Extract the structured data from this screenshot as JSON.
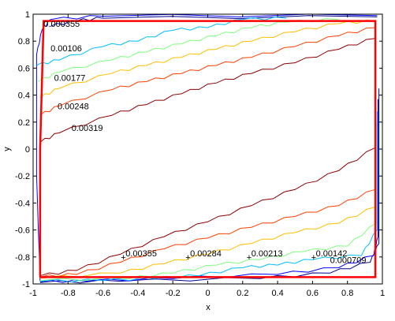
{
  "chart_data": {
    "type": "line",
    "title": "",
    "xlabel": "x",
    "ylabel": "y",
    "xlim": [
      -1,
      1
    ],
    "ylim": [
      -1,
      1
    ],
    "xticks": [
      "-1",
      "-0.8",
      "-0.6",
      "-0.4",
      "-0.2",
      "0",
      "0.2",
      "0.4",
      "0.6",
      "0.8",
      "1"
    ],
    "yticks": [
      "-1",
      "-0.8",
      "-0.6",
      "-0.4",
      "-0.2",
      "0",
      "0.2",
      "0.4",
      "0.6",
      "0.8",
      "1"
    ],
    "grid": false,
    "upper_labels": [
      {
        "text": "0.000355",
        "x": -0.94,
        "y": 0.9
      },
      {
        "text": "0.00106",
        "x": -0.9,
        "y": 0.72
      },
      {
        "text": "0.00177",
        "x": -0.88,
        "y": 0.5
      },
      {
        "text": "0.00248",
        "x": -0.86,
        "y": 0.29
      },
      {
        "text": "0.00319",
        "x": -0.78,
        "y": 0.13
      }
    ],
    "lower_labels": [
      {
        "text": "0.00355",
        "x": -0.48,
        "y": -0.8
      },
      {
        "text": "0.00284",
        "x": -0.11,
        "y": -0.8
      },
      {
        "text": "0.00213",
        "x": 0.24,
        "y": -0.8
      },
      {
        "text": "0.00142",
        "x": 0.61,
        "y": -0.8
      },
      {
        "text": "0.000709",
        "x": 0.7,
        "y": -0.85
      }
    ],
    "series": [
      {
        "color": "#00008f",
        "upper": [
          [
            -0.9,
            0.91
          ],
          [
            -0.75,
            0.95
          ],
          [
            -0.6,
            0.97
          ],
          [
            0.97,
            0.98
          ]
        ],
        "lower": [
          [
            0.98,
            0.45
          ],
          [
            0.98,
            -0.7
          ],
          [
            0.93,
            -0.84
          ],
          [
            0.7,
            -0.92
          ],
          [
            0.3,
            -0.96
          ],
          [
            -0.5,
            -0.98
          ],
          [
            -0.96,
            -0.99
          ]
        ]
      },
      {
        "color": "#0000ff",
        "upper": [
          [
            -0.96,
            -0.98
          ],
          [
            -0.98,
            -0.2
          ],
          [
            -0.98,
            0.7
          ],
          [
            -0.95,
            0.88
          ],
          [
            -0.9,
            0.96
          ],
          [
            -0.6,
            0.985
          ],
          [
            0.97,
            0.99
          ]
        ],
        "lower": [
          [
            0.975,
            0.37
          ],
          [
            0.975,
            -0.65
          ],
          [
            0.95,
            -0.79
          ],
          [
            0.75,
            -0.88
          ],
          [
            0.4,
            -0.93
          ],
          [
            -0.2,
            -0.96
          ],
          [
            -0.7,
            -0.98
          ],
          [
            -0.96,
            -0.985
          ]
        ]
      },
      {
        "color": "#00bfff",
        "upper": [
          [
            -0.98,
            0.62
          ],
          [
            -0.85,
            0.66
          ],
          [
            -0.6,
            0.76
          ],
          [
            -0.4,
            0.8
          ],
          [
            -0.2,
            0.88
          ],
          [
            0.0,
            0.9
          ],
          [
            0.2,
            0.96
          ],
          [
            0.45,
            0.97
          ]
        ],
        "lower": [
          [
            0.97,
            0.28
          ],
          [
            0.97,
            -0.6
          ],
          [
            0.88,
            -0.79
          ],
          [
            0.6,
            -0.82
          ],
          [
            0.4,
            -0.86
          ],
          [
            0.2,
            -0.88
          ],
          [
            -0.05,
            -0.94
          ],
          [
            -0.3,
            -0.96
          ],
          [
            -0.6,
            -0.975
          ],
          [
            -0.96,
            -0.98
          ]
        ]
      },
      {
        "color": "#7fff7f",
        "upper": [
          [
            -0.97,
            0.5
          ],
          [
            -0.85,
            0.57
          ],
          [
            -0.55,
            0.66
          ],
          [
            -0.35,
            0.72
          ],
          [
            -0.15,
            0.78
          ],
          [
            0.05,
            0.84
          ],
          [
            0.25,
            0.9
          ],
          [
            0.45,
            0.94
          ],
          [
            0.75,
            0.96
          ]
        ],
        "lower": [
          [
            0.965,
            0.2
          ],
          [
            0.965,
            -0.55
          ],
          [
            0.8,
            -0.72
          ],
          [
            0.55,
            -0.76
          ],
          [
            0.3,
            -0.82
          ],
          [
            0.05,
            -0.86
          ],
          [
            -0.2,
            -0.92
          ],
          [
            -0.45,
            -0.96
          ],
          [
            -0.96,
            -0.975
          ]
        ]
      },
      {
        "color": "#ffbf00",
        "upper": [
          [
            -0.96,
            0.38
          ],
          [
            -0.85,
            0.45
          ],
          [
            -0.55,
            0.56
          ],
          [
            -0.35,
            0.62
          ],
          [
            -0.15,
            0.68
          ],
          [
            0.05,
            0.74
          ],
          [
            0.25,
            0.8
          ],
          [
            0.5,
            0.87
          ],
          [
            0.75,
            0.93
          ],
          [
            0.96,
            0.95
          ]
        ],
        "lower": [
          [
            0.96,
            0.13
          ],
          [
            0.96,
            -0.43
          ],
          [
            0.75,
            -0.55
          ],
          [
            0.5,
            -0.62
          ],
          [
            0.25,
            -0.7
          ],
          [
            0.0,
            -0.78
          ],
          [
            -0.25,
            -0.85
          ],
          [
            -0.5,
            -0.92
          ],
          [
            -0.96,
            -0.96
          ]
        ]
      },
      {
        "color": "#ff3f00",
        "upper": [
          [
            -0.96,
            0.25
          ],
          [
            -0.85,
            0.32
          ],
          [
            -0.55,
            0.44
          ],
          [
            -0.35,
            0.5
          ],
          [
            -0.15,
            0.56
          ],
          [
            0.05,
            0.62
          ],
          [
            0.25,
            0.68
          ],
          [
            0.5,
            0.76
          ],
          [
            0.75,
            0.84
          ],
          [
            0.96,
            0.9
          ]
        ],
        "lower": [
          [
            0.96,
            0.06
          ],
          [
            0.96,
            -0.3
          ],
          [
            0.75,
            -0.42
          ],
          [
            0.5,
            -0.5
          ],
          [
            0.25,
            -0.58
          ],
          [
            0.0,
            -0.66
          ],
          [
            -0.25,
            -0.74
          ],
          [
            -0.5,
            -0.84
          ],
          [
            -0.75,
            -0.93
          ],
          [
            -0.96,
            -0.95
          ]
        ]
      },
      {
        "color": "#8f0000",
        "upper": [
          [
            -0.96,
            0.05
          ],
          [
            -0.85,
            0.12
          ],
          [
            -0.55,
            0.25
          ],
          [
            -0.35,
            0.33
          ],
          [
            -0.15,
            0.41
          ],
          [
            0.05,
            0.49
          ],
          [
            0.25,
            0.56
          ],
          [
            0.5,
            0.64
          ],
          [
            0.75,
            0.74
          ],
          [
            0.96,
            0.82
          ]
        ],
        "lower": [
          [
            0.96,
            0.01
          ],
          [
            0.75,
            -0.16
          ],
          [
            0.5,
            -0.3
          ],
          [
            0.25,
            -0.42
          ],
          [
            0.0,
            -0.54
          ],
          [
            -0.25,
            -0.65
          ],
          [
            -0.5,
            -0.78
          ],
          [
            -0.75,
            -0.9
          ],
          [
            -0.96,
            -0.94
          ]
        ]
      }
    ],
    "frame": {
      "color": "#ff0000",
      "inner": [
        [
          -0.96,
          -0.95
        ],
        [
          -0.96,
          0.0
        ],
        [
          -0.94,
          0.95
        ],
        [
          0.96,
          0.95
        ],
        [
          0.96,
          -0.95
        ],
        [
          -0.96,
          -0.95
        ]
      ]
    }
  }
}
